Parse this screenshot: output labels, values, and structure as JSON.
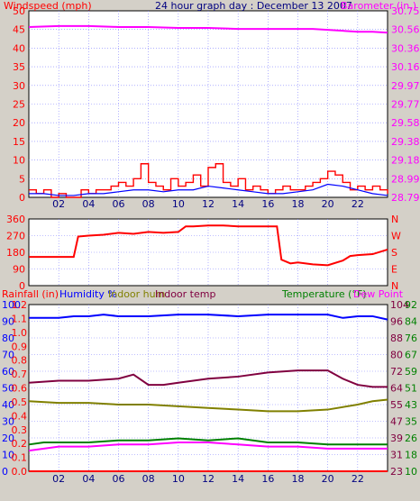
{
  "header": {
    "left": "Windspeed (mph)",
    "center": "24 hour graph day : December 13 2007",
    "right": "Barometer (in.)"
  },
  "colors": {
    "background": "#d4d0c8",
    "plot": "#ffffff",
    "grid": "#8080ff",
    "wind": "#ff0000",
    "wind_avg": "#0000ff",
    "barometer": "#ff00ff",
    "direction": "#ff0000",
    "rain": "#ff0000",
    "humidity": "#0000ff",
    "indoor_hum": "#808000",
    "indoor_temp": "#800040",
    "temperature": "#008000",
    "dew_point": "#ff00ff"
  },
  "chart_data": [
    {
      "type": "line",
      "title": "24 hour graph day : December 13 2007",
      "ylabel": "Windspeed (mph)",
      "y2label": "Barometer (in.)",
      "ylim": [
        0,
        50
      ],
      "y2lim": [
        28.79,
        30.75
      ],
      "yticks": [
        "50",
        "45",
        "40",
        "35",
        "30",
        "25",
        "20",
        "15",
        "10",
        "5",
        "0"
      ],
      "y2ticks": [
        "30.75",
        "30.56",
        "30.36",
        "30.16",
        "29.97",
        "29.77",
        "29.58",
        "29.38",
        "29.18",
        "28.99",
        "28.79"
      ],
      "xticks": [
        "02",
        "04",
        "06",
        "08",
        "10",
        "12",
        "14",
        "16",
        "18",
        "20",
        "22"
      ],
      "x_hours": [
        2,
        4,
        6,
        8,
        10,
        12,
        14,
        16,
        18,
        20,
        22
      ],
      "xlim": [
        0,
        24
      ],
      "grid": true,
      "series": [
        {
          "name": "Windspeed (mph)",
          "x": [
            0,
            0.5,
            1,
            1.5,
            2,
            2.5,
            3,
            3.5,
            4,
            4.5,
            5,
            5.5,
            6,
            6.5,
            7,
            7.5,
            8,
            8.5,
            9,
            9.5,
            10,
            10.5,
            11,
            11.5,
            12,
            12.5,
            13,
            13.5,
            14,
            14.5,
            15,
            15.5,
            16,
            16.5,
            17,
            17.5,
            18,
            18.5,
            19,
            19.5,
            20,
            20.5,
            21,
            21.5,
            22,
            22.5,
            23,
            23.5,
            24
          ],
          "values": [
            2,
            1,
            2,
            0,
            1,
            0,
            0,
            2,
            1,
            2,
            2,
            3,
            4,
            3,
            5,
            9,
            4,
            3,
            2,
            5,
            3,
            4,
            6,
            3,
            8,
            9,
            4,
            3,
            5,
            2,
            3,
            2,
            1,
            2,
            3,
            2,
            2,
            3,
            4,
            5,
            7,
            6,
            4,
            2,
            3,
            2,
            3,
            2,
            1
          ]
        },
        {
          "name": "Wind avg",
          "x": [
            0,
            1,
            2,
            3,
            4,
            5,
            6,
            7,
            8,
            9,
            10,
            11,
            12,
            13,
            14,
            15,
            16,
            17,
            18,
            19,
            20,
            21,
            22,
            23,
            24
          ],
          "values": [
            1,
            1,
            0.5,
            0.5,
            1,
            1,
            1.5,
            2,
            2,
            1.5,
            2,
            2,
            3,
            2.5,
            2,
            1.5,
            1,
            1,
            1.5,
            2,
            3.5,
            3,
            2,
            1,
            0.5
          ]
        },
        {
          "name": "Barometer (in.)",
          "x": [
            0,
            2,
            4,
            6,
            8,
            10,
            12,
            14,
            16,
            18,
            19,
            20,
            21,
            22,
            23,
            24
          ],
          "values": [
            30.58,
            30.59,
            30.59,
            30.58,
            30.58,
            30.57,
            30.57,
            30.56,
            30.56,
            30.56,
            30.56,
            30.55,
            30.54,
            30.53,
            30.53,
            30.52
          ]
        }
      ]
    },
    {
      "type": "line",
      "ylim": [
        0,
        360
      ],
      "yticks": [
        "360",
        "270",
        "180",
        "90",
        "0"
      ],
      "y2ticks": [
        "N",
        "W",
        "S",
        "E",
        "N"
      ],
      "xlim": [
        0,
        24
      ],
      "series": [
        {
          "name": "Wind direction",
          "x": [
            0,
            1,
            2,
            3,
            3.3,
            4,
            5,
            6,
            7,
            8,
            9,
            10,
            10.5,
            11,
            12,
            13,
            14,
            15,
            16,
            16.6,
            16.9,
            17.5,
            18,
            19,
            20,
            21,
            21.5,
            22,
            23,
            24
          ],
          "values": [
            155,
            155,
            155,
            155,
            265,
            270,
            275,
            285,
            280,
            290,
            285,
            290,
            320,
            320,
            325,
            325,
            320,
            320,
            320,
            320,
            140,
            120,
            125,
            115,
            110,
            135,
            160,
            165,
            170,
            195
          ]
        }
      ]
    },
    {
      "type": "line",
      "labels": [
        "Rainfall (in)",
        "Humidity %",
        "Indoor hum",
        "Indoor temp",
        "Temperature (°F)",
        "Dew Point"
      ],
      "yticks_left_pct": [
        "100",
        "90",
        "80",
        "70",
        "60",
        "50",
        "40",
        "30",
        "20",
        "10",
        "0"
      ],
      "yticks_left_rain": [
        "1.2",
        "1.1",
        "1.0",
        "0.9",
        "0.8",
        "0.7",
        "0.6",
        "0.5",
        "0.4",
        "0.3",
        "0.2",
        "0.1",
        "0.0"
      ],
      "yticks_right_temp_f": [
        "104",
        "96",
        "88",
        "80",
        "72",
        "64",
        "55",
        "47",
        "39",
        "31",
        "23"
      ],
      "yticks_right_temp_c": [
        "92",
        "84",
        "76",
        "67",
        "59",
        "51",
        "43",
        "35",
        "26",
        "18",
        "10"
      ],
      "xlim": [
        0,
        24
      ],
      "ylim_pct": [
        0,
        100
      ],
      "series": [
        {
          "name": "Rainfall (in)",
          "axis": "pct",
          "x": [
            0,
            24
          ],
          "values": [
            0,
            0
          ]
        },
        {
          "name": "Humidity %",
          "axis": "pct",
          "x": [
            0,
            2,
            3,
            4,
            5,
            6,
            8,
            10,
            12,
            14,
            16,
            18,
            20,
            21,
            22,
            23,
            24
          ],
          "values": [
            92,
            92,
            93,
            93,
            94,
            93,
            93,
            94,
            94,
            93,
            94,
            94,
            94,
            92,
            93,
            93,
            91
          ]
        },
        {
          "name": "Indoor hum",
          "axis": "pct",
          "x": [
            0,
            2,
            4,
            6,
            8,
            10,
            12,
            14,
            16,
            18,
            20,
            22,
            23,
            24
          ],
          "values": [
            42,
            41,
            41,
            40,
            40,
            39,
            38,
            37,
            36,
            36,
            37,
            40,
            42,
            43
          ]
        },
        {
          "name": "Indoor temp",
          "axis": "temp",
          "x": [
            0,
            2,
            4,
            6,
            7,
            8,
            9,
            10,
            12,
            14,
            16,
            18,
            20,
            21,
            22,
            23,
            24
          ],
          "values": [
            66,
            67,
            67,
            68,
            70,
            65,
            65,
            66,
            68,
            69,
            71,
            72,
            72,
            68,
            65,
            64,
            64
          ]
        },
        {
          "name": "Temperature (°F)",
          "axis": "temp",
          "x": [
            0,
            1,
            2,
            4,
            6,
            8,
            10,
            12,
            14,
            16,
            18,
            20,
            22,
            24
          ],
          "values": [
            36,
            37,
            37,
            37,
            38,
            38,
            39,
            38,
            39,
            37,
            37,
            36,
            36,
            36
          ]
        },
        {
          "name": "Dew Point",
          "axis": "temp",
          "x": [
            0,
            1,
            2,
            4,
            6,
            8,
            10,
            12,
            14,
            16,
            18,
            20,
            22,
            24
          ],
          "values": [
            33,
            34,
            35,
            35,
            36,
            36,
            37,
            37,
            36,
            35,
            35,
            34,
            34,
            34
          ]
        }
      ]
    }
  ]
}
